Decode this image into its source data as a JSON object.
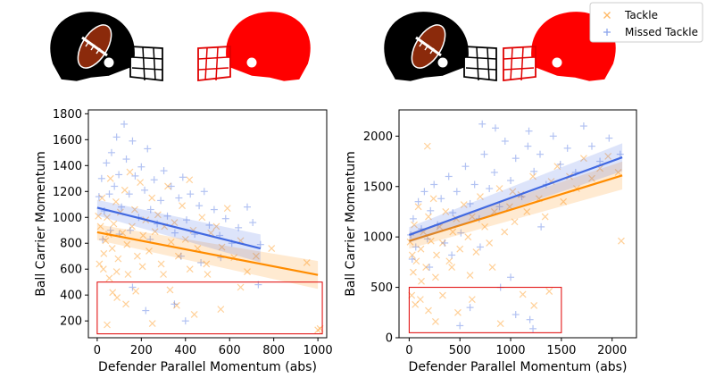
{
  "chart_data": [
    {
      "type": "scatter",
      "xlabel": "Defender Parallel Momentum (abs)",
      "ylabel": "Ball Carrier Momentum",
      "xlim": [
        -40,
        1040
      ],
      "ylim": [
        70,
        1830
      ],
      "xticks": [
        0,
        200,
        400,
        600,
        800,
        1000
      ],
      "yticks": [
        200,
        400,
        600,
        800,
        1000,
        1200,
        1400,
        1600,
        1800
      ],
      "highlight_box": {
        "x": [
          0,
          1020
        ],
        "y": [
          100,
          500
        ]
      },
      "series": [
        {
          "name": "Tackle",
          "marker": "x",
          "color": "#ff8c00",
          "regression": {
            "x": [
              0,
              1000
            ],
            "y": [
              885,
              555
            ]
          },
          "points": [
            [
              5,
              1010
            ],
            [
              15,
              930
            ],
            [
              22,
              1150
            ],
            [
              30,
              720
            ],
            [
              38,
              820
            ],
            [
              45,
              1000
            ],
            [
              52,
              870
            ],
            [
              60,
              1300
            ],
            [
              68,
              760
            ],
            [
              75,
              950
            ],
            [
              85,
              1120
            ],
            [
              95,
              680
            ],
            [
              105,
              1040
            ],
            [
              115,
              880
            ],
            [
              125,
              1210
            ],
            [
              135,
              790
            ],
            [
              148,
              1350
            ],
            [
              158,
              930
            ],
            [
              170,
              1060
            ],
            [
              182,
              700
            ],
            [
              195,
              1270
            ],
            [
              208,
              860
            ],
            [
              220,
              980
            ],
            [
              235,
              740
            ],
            [
              248,
              1150
            ],
            [
              262,
              890
            ],
            [
              275,
              1020
            ],
            [
              290,
              640
            ],
            [
              305,
              930
            ],
            [
              320,
              1240
            ],
            [
              335,
              810
            ],
            [
              350,
              960
            ],
            [
              368,
              700
            ],
            [
              385,
              1090
            ],
            [
              400,
              830
            ],
            [
              418,
              1290
            ],
            [
              435,
              900
            ],
            [
              455,
              760
            ],
            [
              475,
              1000
            ],
            [
              495,
              640
            ],
            [
              515,
              880
            ],
            [
              540,
              930
            ],
            [
              565,
              770
            ],
            [
              590,
              1070
            ],
            [
              620,
              690
            ],
            [
              650,
              820
            ],
            [
              680,
              580
            ],
            [
              720,
              700
            ],
            [
              790,
              760
            ],
            [
              950,
              650
            ],
            [
              10,
              640
            ],
            [
              28,
              600
            ],
            [
              55,
              530
            ],
            [
              88,
              580
            ],
            [
              140,
              560
            ],
            [
              205,
              620
            ],
            [
              300,
              560
            ],
            [
              420,
              600
            ],
            [
              500,
              560
            ],
            [
              45,
              170
            ],
            [
              70,
              420
            ],
            [
              90,
              380
            ],
            [
              130,
              330
            ],
            [
              175,
              430
            ],
            [
              250,
              180
            ],
            [
              330,
              440
            ],
            [
              360,
              320
            ],
            [
              440,
              250
            ],
            [
              560,
              290
            ],
            [
              650,
              460
            ],
            [
              1000,
              130
            ],
            [
              1010,
              140
            ]
          ]
        },
        {
          "name": "Missed Tackle",
          "marker": "+",
          "color": "#4169e1",
          "regression": {
            "x": [
              0,
              740
            ],
            "y": [
              1075,
              760
            ]
          },
          "points": [
            [
              8,
              1160
            ],
            [
              20,
              1300
            ],
            [
              32,
              1050
            ],
            [
              42,
              1420
            ],
            [
              55,
              1180
            ],
            [
              65,
              1500
            ],
            [
              78,
              1240
            ],
            [
              88,
              1620
            ],
            [
              98,
              1330
            ],
            [
              110,
              1080
            ],
            [
              122,
              1720
            ],
            [
              132,
              1450
            ],
            [
              145,
              1180
            ],
            [
              160,
              1590
            ],
            [
              172,
              1320
            ],
            [
              188,
              1000
            ],
            [
              200,
              1390
            ],
            [
              215,
              1210
            ],
            [
              228,
              1530
            ],
            [
              242,
              1060
            ],
            [
              258,
              1290
            ],
            [
              272,
              950
            ],
            [
              288,
              1130
            ],
            [
              302,
              1360
            ],
            [
              318,
              1010
            ],
            [
              335,
              1240
            ],
            [
              352,
              880
            ],
            [
              370,
              1150
            ],
            [
              388,
              1310
            ],
            [
              405,
              980
            ],
            [
              422,
              1180
            ],
            [
              442,
              870
            ],
            [
              462,
              1090
            ],
            [
              485,
              1200
            ],
            [
              508,
              940
            ],
            [
              530,
              1060
            ],
            [
              555,
              860
            ],
            [
              582,
              990
            ],
            [
              610,
              800
            ],
            [
              640,
              920
            ],
            [
              680,
              1080
            ],
            [
              705,
              960
            ],
            [
              740,
              790
            ],
            [
              25,
              830
            ],
            [
              60,
              900
            ],
            [
              100,
              870
            ],
            [
              150,
              900
            ],
            [
              240,
              830
            ],
            [
              380,
              700
            ],
            [
              470,
              650
            ],
            [
              560,
              690
            ],
            [
              730,
              480
            ],
            [
              160,
              460
            ],
            [
              220,
              280
            ],
            [
              350,
              330
            ],
            [
              400,
              200
            ]
          ]
        }
      ]
    },
    {
      "type": "scatter",
      "xlabel": "Defender Parallel Momentum (abs)",
      "ylabel": "Ball Carrier Momentum",
      "xlim": [
        -100,
        2240
      ],
      "ylim": [
        0,
        2260
      ],
      "xticks": [
        0,
        500,
        1000,
        1500,
        2000
      ],
      "yticks": [
        0,
        500,
        1000,
        1500,
        2000
      ],
      "highlight_box": {
        "x": [
          0,
          1500
        ],
        "y": [
          50,
          500
        ]
      },
      "series": [
        {
          "name": "Tackle",
          "marker": "x",
          "color": "#ff8c00",
          "regression": {
            "x": [
              0,
              2100
            ],
            "y": [
              960,
              1610
            ]
          },
          "points": [
            [
              10,
              950
            ],
            [
              30,
              820
            ],
            [
              50,
              1120
            ],
            [
              70,
              760
            ],
            [
              90,
              1300
            ],
            [
              115,
              880
            ],
            [
              140,
              1050
            ],
            [
              165,
              700
            ],
            [
              190,
              1200
            ],
            [
              215,
              960
            ],
            [
              240,
              1380
            ],
            [
              270,
              820
            ],
            [
              300,
              1100
            ],
            [
              330,
              940
            ],
            [
              360,
              1250
            ],
            [
              395,
              760
            ],
            [
              430,
              1050
            ],
            [
              465,
              1180
            ],
            [
              500,
              880
            ],
            [
              540,
              1320
            ],
            [
              580,
              1000
            ],
            [
              620,
              1200
            ],
            [
              660,
              850
            ],
            [
              700,
              1400
            ],
            [
              745,
              1100
            ],
            [
              790,
              940
            ],
            [
              840,
              1250
            ],
            [
              890,
              1480
            ],
            [
              940,
              1050
            ],
            [
              990,
              1300
            ],
            [
              1040,
              1150
            ],
            [
              1100,
              1420
            ],
            [
              1160,
              1250
            ],
            [
              1220,
              1600
            ],
            [
              1280,
              1380
            ],
            [
              1340,
              1200
            ],
            [
              1400,
              1550
            ],
            [
              1460,
              1700
            ],
            [
              1520,
              1350
            ],
            [
              1580,
              1600
            ],
            [
              1650,
              1480
            ],
            [
              1720,
              1780
            ],
            [
              1800,
              1580
            ],
            [
              1880,
              1680
            ],
            [
              1960,
              1800
            ],
            [
              2060,
              1640
            ],
            [
              2090,
              960
            ],
            [
              40,
              650
            ],
            [
              120,
              560
            ],
            [
              260,
              600
            ],
            [
              420,
              700
            ],
            [
              600,
              620
            ],
            [
              820,
              700
            ],
            [
              180,
              1900
            ],
            [
              1020,
              1450
            ],
            [
              25,
              420
            ],
            [
              60,
              330
            ],
            [
              110,
              380
            ],
            [
              190,
              270
            ],
            [
              260,
              160
            ],
            [
              330,
              420
            ],
            [
              480,
              250
            ],
            [
              620,
              380
            ],
            [
              900,
              140
            ],
            [
              1120,
              430
            ],
            [
              1230,
              320
            ],
            [
              1380,
              460
            ]
          ]
        },
        {
          "name": "Missed Tackle",
          "marker": "+",
          "color": "#4169e1",
          "regression": {
            "x": [
              0,
              2100
            ],
            "y": [
              1020,
              1790
            ]
          },
          "points": [
            [
              15,
              1020
            ],
            [
              40,
              1180
            ],
            [
              65,
              900
            ],
            [
              90,
              1350
            ],
            [
              120,
              1080
            ],
            [
              150,
              1450
            ],
            [
              180,
              980
            ],
            [
              210,
              1260
            ],
            [
              245,
              1520
            ],
            [
              280,
              1120
            ],
            [
              315,
              1380
            ],
            [
              350,
              940
            ],
            [
              390,
              1600
            ],
            [
              430,
              1240
            ],
            [
              470,
              1450
            ],
            [
              510,
              1040
            ],
            [
              555,
              1700
            ],
            [
              600,
              1330
            ],
            [
              645,
              1520
            ],
            [
              690,
              1180
            ],
            [
              740,
              1820
            ],
            [
              790,
              1480
            ],
            [
              840,
              1640
            ],
            [
              890,
              1300
            ],
            [
              945,
              1950
            ],
            [
              1000,
              1560
            ],
            [
              1050,
              1780
            ],
            [
              1110,
              1400
            ],
            [
              1170,
              1900
            ],
            [
              1230,
              1650
            ],
            [
              1290,
              1820
            ],
            [
              1350,
              1520
            ],
            [
              1420,
              2000
            ],
            [
              1490,
              1720
            ],
            [
              1560,
              1880
            ],
            [
              1640,
              1640
            ],
            [
              1720,
              2100
            ],
            [
              1800,
              1900
            ],
            [
              1880,
              1750
            ],
            [
              1970,
              1980
            ],
            [
              2080,
              1820
            ],
            [
              720,
              2120
            ],
            [
              850,
              2080
            ],
            [
              1180,
              2050
            ],
            [
              900,
              500
            ],
            [
              1000,
              600
            ],
            [
              600,
              300
            ],
            [
              1050,
              230
            ],
            [
              1190,
              180
            ],
            [
              1220,
              90
            ],
            [
              500,
              120
            ],
            [
              30,
              780
            ],
            [
              200,
              700
            ],
            [
              420,
              820
            ],
            [
              700,
              900
            ],
            [
              1300,
              1100
            ]
          ]
        }
      ]
    }
  ],
  "legend": {
    "entries": [
      {
        "label": "Tackle",
        "marker": "x",
        "color": "#ff8c00"
      },
      {
        "label": "Missed Tackle",
        "marker": "+",
        "color": "#4169e1"
      }
    ]
  }
}
